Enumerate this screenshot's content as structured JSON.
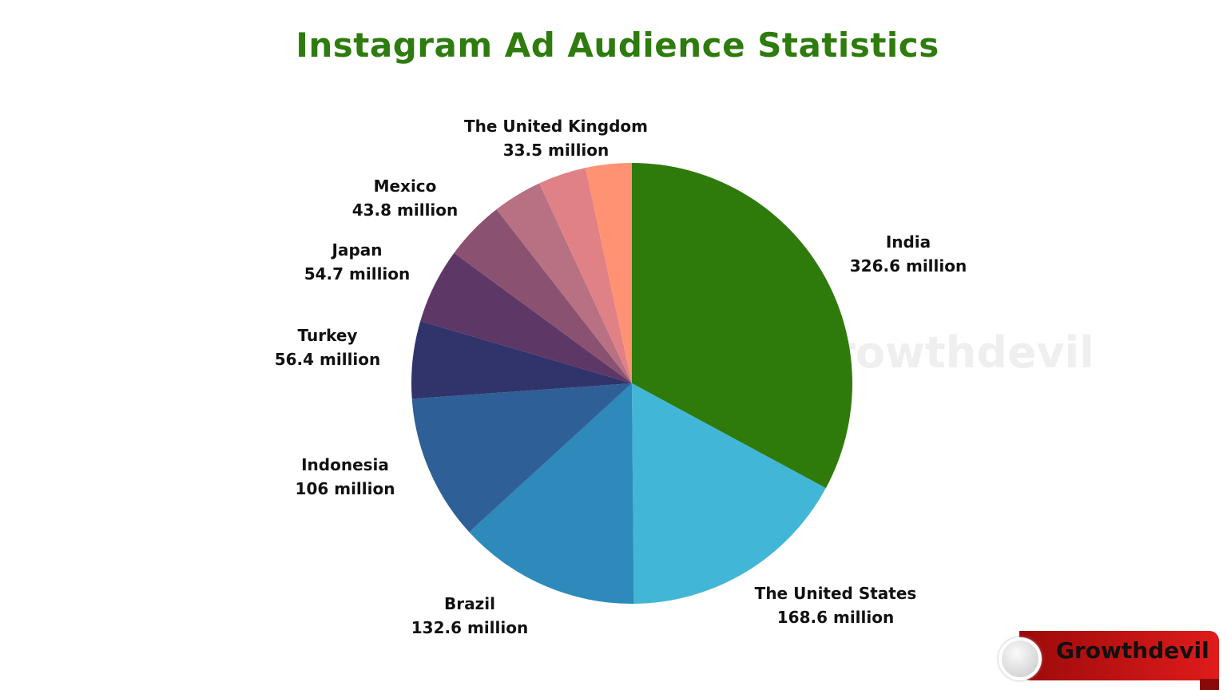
{
  "chart_data": {
    "type": "pie",
    "title": "Instagram Ad Audience Statistics",
    "unit": "million",
    "slices": [
      {
        "name": "India",
        "value": 326.6,
        "label": "326.6 million",
        "color": "#2e7b0c"
      },
      {
        "name": "The United States",
        "value": 168.6,
        "label": "168.6 million",
        "color": "#42b6d6"
      },
      {
        "name": "Brazil",
        "value": 132.6,
        "label": "132.6 million",
        "color": "#2d8aba"
      },
      {
        "name": "Indonesia",
        "value": 106,
        "label": "106 million",
        "color": "#2e5f97"
      },
      {
        "name": "Turkey",
        "value": 56.4,
        "label": "56.4 million",
        "color": "#31346b"
      },
      {
        "name": "Japan",
        "value": 54.7,
        "label": "54.7 million",
        "color": "#5d3766"
      },
      {
        "name": "Mexico",
        "value": 43.8,
        "label": "43.8 million",
        "color": "#8a5270"
      },
      {
        "name": "",
        "value": 36,
        "label": "",
        "color": "#b87083"
      },
      {
        "name": "",
        "value": 35,
        "label": "",
        "color": "#e08285"
      },
      {
        "name": "The United Kingdom",
        "value": 33.5,
        "label": "33.5 million",
        "color": "#ff9272"
      }
    ],
    "start_angle": "top",
    "direction": "clockwise",
    "legend": "none"
  },
  "watermark": "Growthdevil",
  "logo": {
    "text": "Growthdevil",
    "color": "#d01515"
  }
}
